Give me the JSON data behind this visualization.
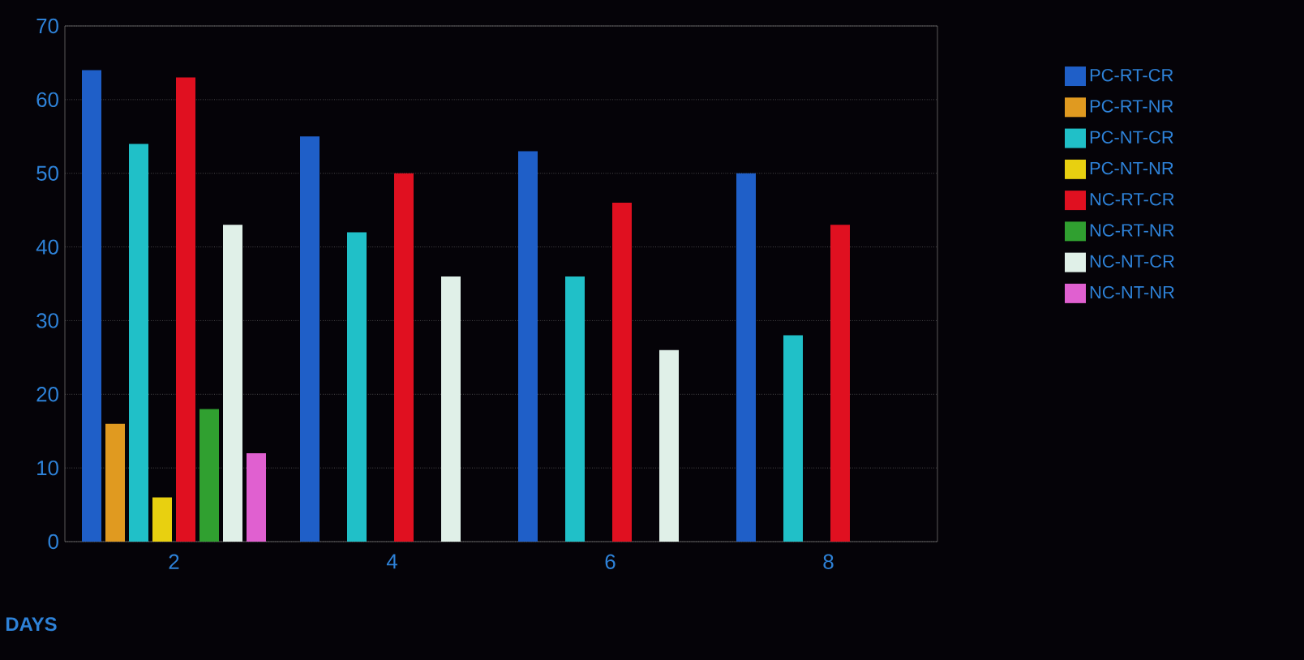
{
  "chart_data": {
    "type": "bar",
    "xlabel": "DAYS",
    "categories": [
      "2",
      "4",
      "6",
      "8"
    ],
    "series": [
      {
        "name": "PC-RT-CR",
        "color": "#1f5fc8",
        "values": [
          64,
          55,
          53,
          50
        ]
      },
      {
        "name": "PC-RT-NR",
        "color": "#e09a20",
        "values": [
          16,
          null,
          null,
          null
        ]
      },
      {
        "name": "PC-NT-CR",
        "color": "#20c0c8",
        "values": [
          54,
          42,
          36,
          28
        ]
      },
      {
        "name": "PC-NT-NR",
        "color": "#e8d010",
        "values": [
          6,
          null,
          null,
          null
        ]
      },
      {
        "name": "NC-RT-CR",
        "color": "#e01020",
        "values": [
          63,
          50,
          46,
          43
        ]
      },
      {
        "name": "NC-RT-NR",
        "color": "#30a030",
        "values": [
          18,
          null,
          null,
          null
        ]
      },
      {
        "name": "NC-NT-CR",
        "color": "#e0f0e8",
        "values": [
          43,
          36,
          26,
          null
        ]
      },
      {
        "name": "NC-NT-NR",
        "color": "#e060d0",
        "values": [
          12,
          null,
          null,
          null
        ]
      }
    ],
    "ylim": [
      0,
      70
    ],
    "yticks": [
      0,
      10,
      20,
      30,
      40,
      50,
      60,
      70
    ],
    "grid": "y",
    "legend": "right"
  }
}
